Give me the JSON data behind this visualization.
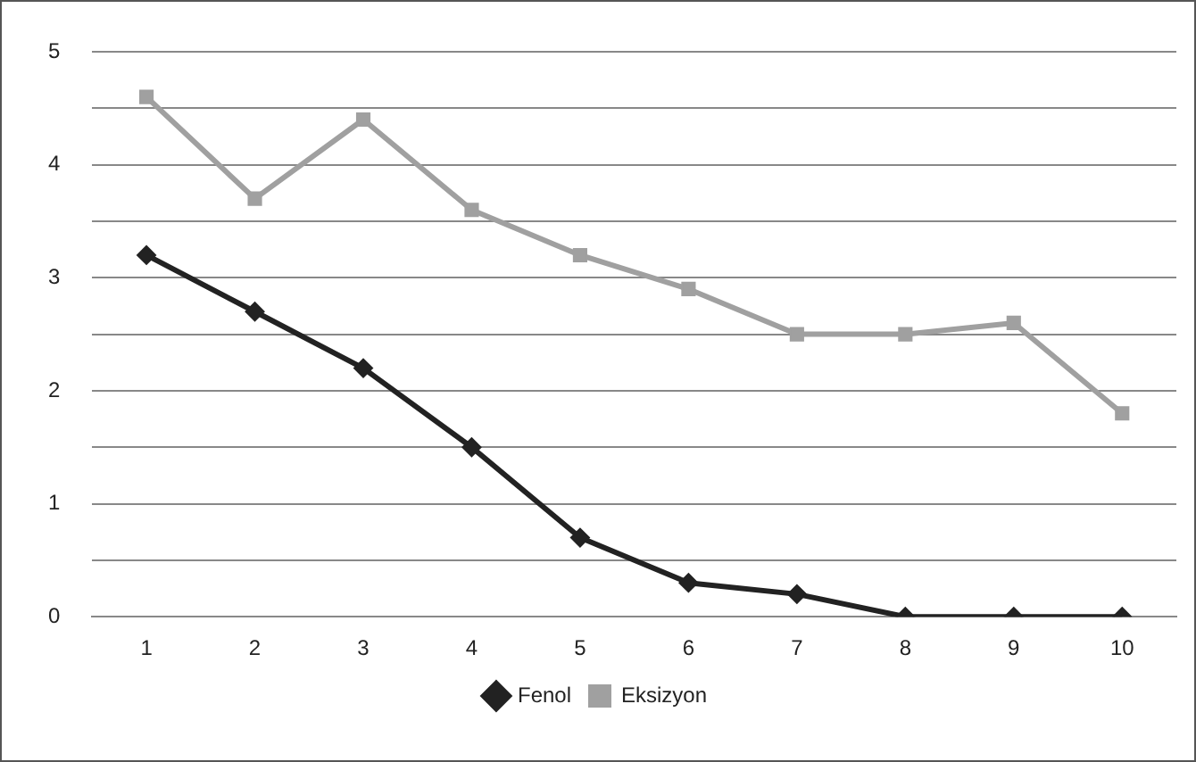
{
  "chart_data": {
    "type": "line",
    "categories": [
      "1",
      "2",
      "3",
      "4",
      "5",
      "6",
      "7",
      "8",
      "9",
      "10"
    ],
    "series": [
      {
        "name": "Fenol",
        "color": "#222222",
        "marker": "diamond",
        "values": [
          3.2,
          2.7,
          2.2,
          1.5,
          0.7,
          0.3,
          0.2,
          0,
          0,
          0
        ]
      },
      {
        "name": "Eksizyon",
        "color": "#a0a0a0",
        "marker": "square",
        "values": [
          4.6,
          3.7,
          4.4,
          3.6,
          3.2,
          2.9,
          2.5,
          2.5,
          2.6,
          1.8
        ]
      }
    ],
    "ylim": [
      0,
      5
    ],
    "yticks": [
      0,
      {
        "value": 0.5,
        "label": null
      },
      1,
      {
        "value": 1.5,
        "label": null
      },
      2,
      {
        "value": 2.5,
        "label": null
      },
      3,
      {
        "value": 3.5,
        "label": null
      },
      4,
      {
        "value": 4.5,
        "label": null
      },
      5
    ],
    "grid": "y",
    "legend": "bottom",
    "line_style": "solid"
  }
}
